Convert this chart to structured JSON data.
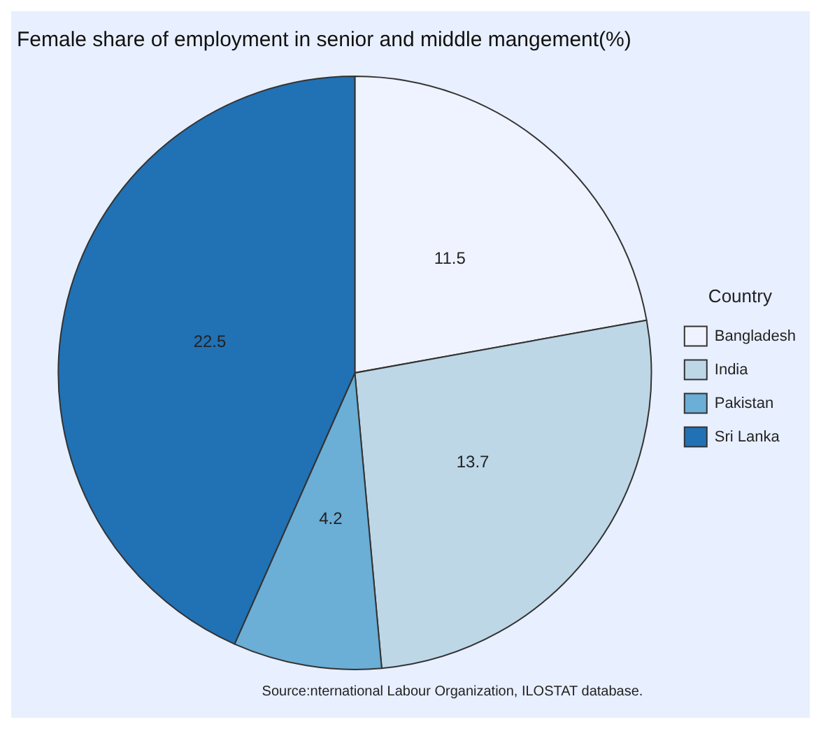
{
  "chart_data": {
    "type": "pie",
    "title": "Female share of employment in senior and middle mangement(%)",
    "legend_title": "Country",
    "categories": [
      "Bangladesh",
      "India",
      "Pakistan",
      "Sri Lanka"
    ],
    "values": [
      11.5,
      13.7,
      4.2,
      22.5
    ],
    "colors": [
      "#eff3ff",
      "#bdd7e7",
      "#6baed6",
      "#2171b5"
    ],
    "data_labels": true,
    "legend": "right",
    "annotations": [
      "Source:nternational Labour Organization, ILOSTAT database."
    ]
  }
}
